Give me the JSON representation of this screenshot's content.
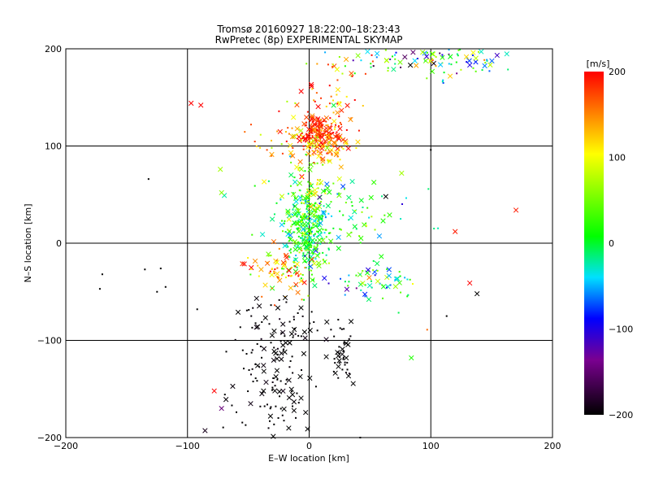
{
  "chart_data": {
    "type": "scatter",
    "title": "Tromsø 20160927 18:22:00–18:23:43",
    "subtitle": "RwPretec (8p) EXPERIMENTAL SKYMAP",
    "xlabel": "E–W location [km]",
    "ylabel": "N–S location [km]",
    "xlim": [
      -200,
      200
    ],
    "ylim": [
      -200,
      200
    ],
    "xticks": [
      -200,
      -100,
      0,
      100,
      200
    ],
    "yticks": [
      -200,
      -100,
      0,
      100,
      200
    ],
    "grid": true,
    "colorbar": {
      "label": "[m/s]",
      "range": [
        -200,
        200
      ],
      "ticks": [
        200,
        100,
        0,
        -100,
        -200
      ],
      "colormap": "black-purple-blue-cyan-green-yellow-red"
    },
    "clusters": [
      {
        "x": 8,
        "y": 112,
        "sx": 9,
        "sy": 10,
        "n": 180,
        "v": 185,
        "vs": 20
      },
      {
        "x": 12,
        "y": 98,
        "sx": 11,
        "sy": 8,
        "n": 70,
        "v": 120,
        "vs": 25
      },
      {
        "x": -15,
        "y": 108,
        "sx": 18,
        "sy": 18,
        "n": 50,
        "v": 150,
        "vs": 40
      },
      {
        "x": 0,
        "y": 10,
        "sx": 10,
        "sy": 22,
        "n": 280,
        "v": 10,
        "vs": 40
      },
      {
        "x": 25,
        "y": 35,
        "sx": 35,
        "sy": 20,
        "n": 90,
        "v": 20,
        "vs": 50
      },
      {
        "x": -20,
        "y": -30,
        "sx": 14,
        "sy": 12,
        "n": 80,
        "v": 130,
        "vs": 60
      },
      {
        "x": 55,
        "y": -38,
        "sx": 18,
        "sy": 12,
        "n": 60,
        "v": 0,
        "vs": 60
      },
      {
        "x": 0,
        "y": 55,
        "sx": 8,
        "sy": 18,
        "n": 60,
        "v": 70,
        "vs": 40
      },
      {
        "x": -32,
        "y": -140,
        "sx": 18,
        "sy": 35,
        "n": 120,
        "v": -200,
        "vs": 5
      },
      {
        "x": -25,
        "y": -80,
        "sx": 15,
        "sy": 12,
        "n": 40,
        "v": -200,
        "vs": 5
      },
      {
        "x": 26,
        "y": -115,
        "sx": 5,
        "sy": 15,
        "n": 45,
        "v": -200,
        "vs": 5
      },
      {
        "x": 115,
        "y": 190,
        "sx": 20,
        "sy": 8,
        "n": 80,
        "v": -20,
        "vs": 80
      },
      {
        "x": 50,
        "y": 190,
        "sx": 20,
        "sy": 8,
        "n": 40,
        "v": 30,
        "vs": 100
      },
      {
        "x": 20,
        "y": 150,
        "sx": 15,
        "sy": 20,
        "n": 40,
        "v": 150,
        "vs": 50
      }
    ],
    "outliers": [
      {
        "x": -97,
        "y": 144,
        "v": 200,
        "m": "x"
      },
      {
        "x": -89,
        "y": 142,
        "v": 200,
        "m": "x"
      },
      {
        "x": -132,
        "y": 66,
        "v": -200,
        "m": "."
      },
      {
        "x": -170,
        "y": -32,
        "v": -200,
        "m": "."
      },
      {
        "x": -172,
        "y": -47,
        "v": -200,
        "m": "."
      },
      {
        "x": -135,
        "y": -27,
        "v": -200,
        "m": "."
      },
      {
        "x": -122,
        "y": -26,
        "v": -200,
        "m": "."
      },
      {
        "x": -125,
        "y": -50,
        "v": -200,
        "m": "."
      },
      {
        "x": -118,
        "y": -45,
        "v": -200,
        "m": "."
      },
      {
        "x": -92,
        "y": -68,
        "v": -200,
        "m": "."
      },
      {
        "x": 170,
        "y": 34,
        "v": 190,
        "m": "x"
      },
      {
        "x": 120,
        "y": 12,
        "v": 190,
        "m": "x"
      },
      {
        "x": 132,
        "y": -41,
        "v": 200,
        "m": "x"
      },
      {
        "x": 138,
        "y": -52,
        "v": -200,
        "m": "x"
      },
      {
        "x": 84,
        "y": -118,
        "v": 20,
        "m": "x"
      },
      {
        "x": 76,
        "y": 72,
        "v": 70,
        "m": "x"
      },
      {
        "x": 63,
        "y": 48,
        "v": -200,
        "m": "x"
      },
      {
        "x": 100,
        "y": 96,
        "v": -200,
        "m": "."
      },
      {
        "x": -73,
        "y": 76,
        "v": 70,
        "m": "x"
      },
      {
        "x": -72,
        "y": 52,
        "v": 60,
        "m": "x"
      },
      {
        "x": -78,
        "y": -152,
        "v": 200,
        "m": "x"
      },
      {
        "x": -72,
        "y": -170,
        "v": -150,
        "m": "x"
      },
      {
        "x": 42,
        "y": -200,
        "v": -200,
        "m": "."
      },
      {
        "x": 113,
        "y": -75,
        "v": -200,
        "m": "."
      },
      {
        "x": 97,
        "y": -89,
        "v": 160,
        "m": "."
      }
    ]
  }
}
